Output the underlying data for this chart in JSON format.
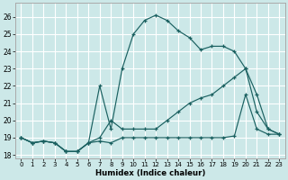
{
  "xlabel": "Humidex (Indice chaleur)",
  "xlim": [
    -0.5,
    23.5
  ],
  "ylim": [
    17.8,
    26.8
  ],
  "yticks": [
    18,
    19,
    20,
    21,
    22,
    23,
    24,
    25,
    26
  ],
  "xticks": [
    0,
    1,
    2,
    3,
    4,
    5,
    6,
    7,
    8,
    9,
    10,
    11,
    12,
    13,
    14,
    15,
    16,
    17,
    18,
    19,
    20,
    21,
    22,
    23
  ],
  "bg": "#cce8e8",
  "grid_color": "#ffffff",
  "line_color": "#1a6060",
  "line1_x": [
    0,
    1,
    2,
    3,
    4,
    5,
    6,
    7,
    8,
    9,
    10,
    11,
    12,
    13,
    14,
    15,
    16,
    17,
    18,
    19,
    20,
    21,
    22,
    23
  ],
  "line1_y": [
    19.0,
    18.7,
    18.8,
    18.7,
    18.2,
    18.2,
    18.7,
    22.0,
    19.5,
    23.0,
    25.0,
    25.8,
    26.1,
    25.8,
    25.2,
    24.8,
    24.1,
    24.3,
    24.3,
    24.0,
    23.0,
    20.5,
    19.5,
    19.2
  ],
  "line2_x": [
    0,
    1,
    2,
    3,
    4,
    5,
    6,
    7,
    8,
    9,
    10,
    11,
    12,
    13,
    14,
    15,
    16,
    17,
    18,
    19,
    20,
    21,
    22,
    23
  ],
  "line2_y": [
    19.0,
    18.7,
    18.8,
    18.7,
    18.2,
    18.2,
    18.7,
    19.0,
    20.0,
    19.5,
    19.5,
    19.5,
    19.5,
    20.0,
    20.5,
    21.0,
    21.3,
    21.5,
    22.0,
    22.5,
    23.0,
    21.5,
    19.5,
    19.2
  ],
  "line3_x": [
    0,
    1,
    2,
    3,
    4,
    5,
    6,
    7,
    8,
    9,
    10,
    11,
    12,
    13,
    14,
    15,
    16,
    17,
    18,
    19,
    20,
    21,
    22,
    23
  ],
  "line3_y": [
    19.0,
    18.7,
    18.8,
    18.7,
    18.2,
    18.2,
    18.7,
    18.8,
    18.7,
    19.0,
    19.0,
    19.0,
    19.0,
    19.0,
    19.0,
    19.0,
    19.0,
    19.0,
    19.0,
    19.1,
    21.5,
    19.5,
    19.2,
    19.2
  ]
}
